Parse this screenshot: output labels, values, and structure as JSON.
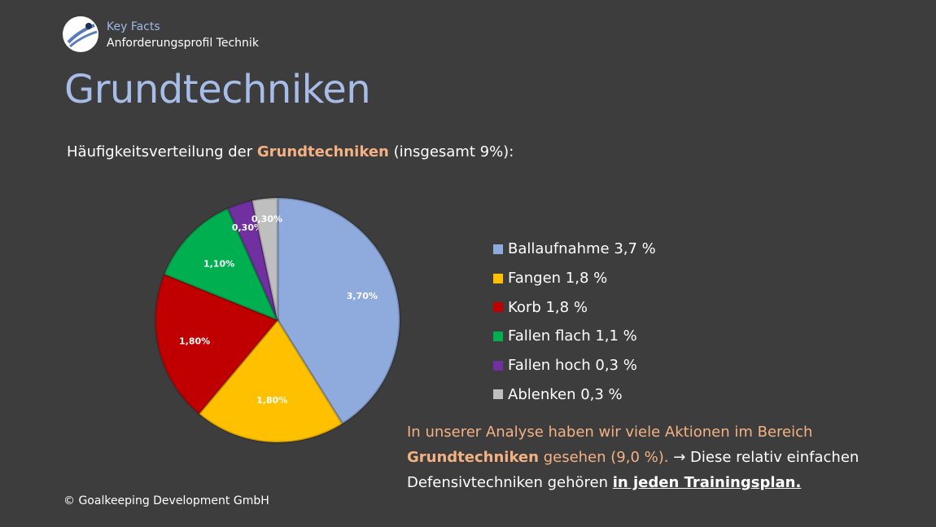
{
  "header": {
    "kicker": "Key Facts",
    "subkicker": "Anforderungsprofil Technik",
    "title": "Grundtechniken"
  },
  "intro": {
    "prefix": "Häufigkeitsverteilung der ",
    "highlight": "Grundtechniken",
    "suffix": " (insgesamt 9%):"
  },
  "chart_data": {
    "type": "pie",
    "title": "",
    "categories": [
      "Ballaufnahme",
      "Fangen",
      "Korb",
      "Fallen flach",
      "Fallen hoch",
      "Ablenken"
    ],
    "values": [
      3.7,
      1.8,
      1.8,
      1.1,
      0.3,
      0.3
    ],
    "data_labels": [
      "3,70%",
      "1,80%",
      "1,80%",
      "1,10%",
      "0,30%",
      "0,30%"
    ],
    "colors": [
      "#8faadc",
      "#ffc000",
      "#c00000",
      "#00b050",
      "#7030a0",
      "#bfbfbf"
    ],
    "legend_placement": "right"
  },
  "legend": {
    "items": [
      {
        "label": "Ballaufnahme 3,7 %",
        "color": "#8faadc"
      },
      {
        "label": "Fangen 1,8 %",
        "color": "#ffc000"
      },
      {
        "label": "Korb 1,8 %",
        "color": "#c00000"
      },
      {
        "label": "Fallen flach 1,1 %",
        "color": "#00b050"
      },
      {
        "label": "Fallen hoch 0,3 %",
        "color": "#7030a0"
      },
      {
        "label": "Ablenken 0,3 %",
        "color": "#bfbfbf"
      }
    ]
  },
  "note": {
    "line1": "In unserer Analyse haben wir viele Aktionen im Bereich",
    "bold_term": "Grundtechniken",
    "line2_rest": " gesehen (9,0 %).",
    "arrow": " → ",
    "line2_white": "Diese relativ einfachen",
    "line3": "Defensivtechniken gehören ",
    "line3_emph": "in jeden Trainingsplan."
  },
  "footer": {
    "copyright": "© Goalkeeping Development GmbH"
  }
}
